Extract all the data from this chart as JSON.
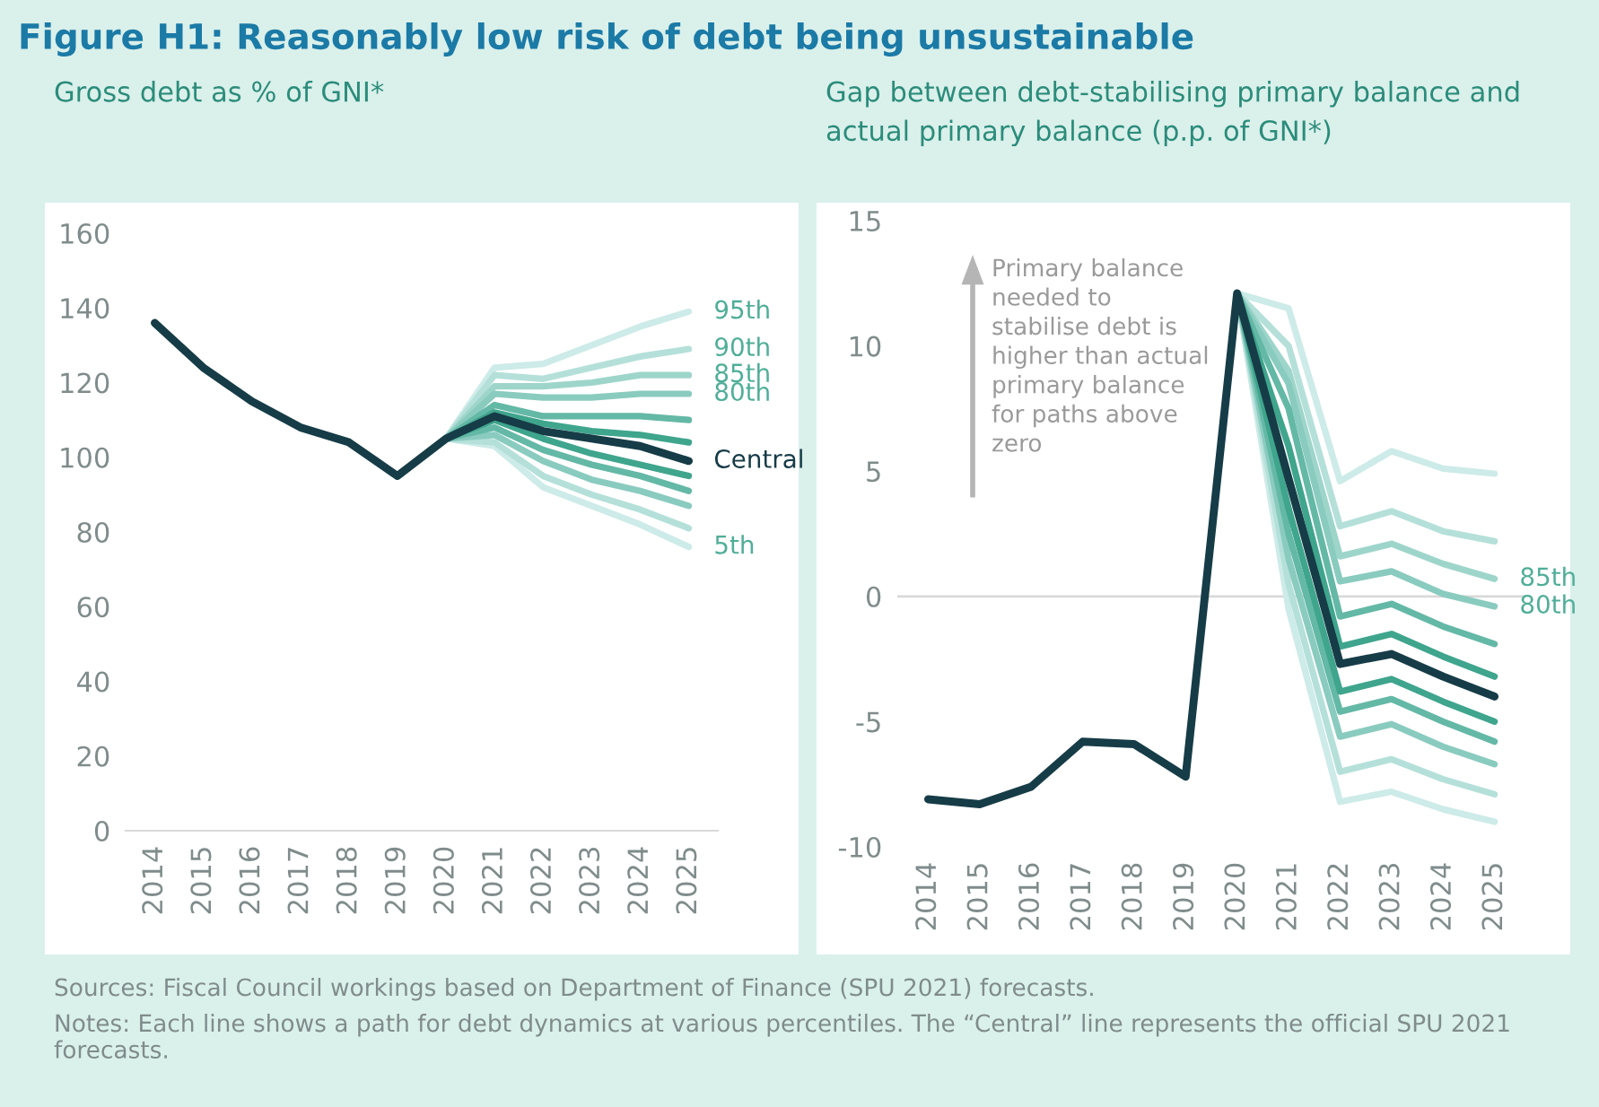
{
  "chart_data": [
    {
      "type": "line",
      "title": "Figure H1: Reasonably low risk of debt being unsustainable",
      "subtitle": "Gross debt as % of GNI*",
      "categories": [
        "2014",
        "2015",
        "2016",
        "2017",
        "2018",
        "2019",
        "2020",
        "2021",
        "2022",
        "2023",
        "2024",
        "2025"
      ],
      "ylim": [
        0,
        160
      ],
      "yticks": [
        0,
        20,
        40,
        60,
        80,
        100,
        120,
        140,
        160
      ],
      "grid": false,
      "legend": false,
      "marker": "none",
      "line_style": "solid",
      "series": [
        {
          "name": "95th",
          "color": "#cdebe8",
          "values": [
            null,
            null,
            null,
            null,
            null,
            null,
            105,
            124,
            125,
            130,
            135,
            139
          ]
        },
        {
          "name": "5th",
          "color": "#cdebe8",
          "values": [
            null,
            null,
            null,
            null,
            null,
            null,
            105,
            103,
            92,
            87,
            82,
            76
          ]
        },
        {
          "name": "90th",
          "color": "#b5e0da",
          "values": [
            null,
            null,
            null,
            null,
            null,
            null,
            105,
            122,
            121,
            124,
            127,
            129
          ]
        },
        {
          "color": "#b5e0da",
          "values": [
            null,
            null,
            null,
            null,
            null,
            null,
            105,
            104,
            95,
            90,
            86,
            81
          ]
        },
        {
          "name": "85th",
          "color": "#9ed5cb",
          "values": [
            null,
            null,
            null,
            null,
            null,
            null,
            105,
            119,
            119,
            120,
            122,
            122
          ]
        },
        {
          "name": "80th",
          "color": "#8acbbf",
          "values": [
            null,
            null,
            null,
            null,
            null,
            null,
            105,
            117,
            116,
            116,
            117,
            117
          ]
        },
        {
          "color": "#8acbbf",
          "values": [
            null,
            null,
            null,
            null,
            null,
            null,
            105,
            106,
            99,
            94,
            91,
            87
          ]
        },
        {
          "color": "#64b8a6",
          "values": [
            null,
            null,
            null,
            null,
            null,
            null,
            105,
            114,
            111,
            111,
            111,
            110
          ]
        },
        {
          "color": "#64b8a6",
          "values": [
            null,
            null,
            null,
            null,
            null,
            null,
            105,
            108,
            102,
            98,
            95,
            91
          ]
        },
        {
          "color": "#3fa58d",
          "values": [
            null,
            null,
            null,
            null,
            null,
            null,
            105,
            112,
            109,
            107,
            106,
            104
          ]
        },
        {
          "color": "#3fa58d",
          "values": [
            null,
            null,
            null,
            null,
            null,
            null,
            105,
            110,
            105,
            101,
            98,
            95
          ]
        },
        {
          "name": "Central",
          "color": "#163c47",
          "values": [
            136,
            124,
            115,
            108,
            104,
            95,
            105,
            111,
            107,
            105,
            103,
            99
          ]
        }
      ],
      "annotations": [
        "Sources: Fiscal Council workings based on Department of Finance (SPU 2021) forecasts.",
        "Notes: Each line shows a path for debt dynamics at various percentiles. The “Central” line represents the official SPU 2021 forecasts."
      ]
    },
    {
      "type": "line",
      "subtitle": "Gap between debt-stabilising primary balance and actual primary balance (p.p. of GNI*)",
      "categories": [
        "2014",
        "2015",
        "2016",
        "2017",
        "2018",
        "2019",
        "2020",
        "2021",
        "2022",
        "2023",
        "2024",
        "2025"
      ],
      "ylim": [
        -10,
        15
      ],
      "yticks": [
        -10,
        -5,
        0,
        5,
        10,
        15
      ],
      "grid": false,
      "legend": false,
      "marker": "none",
      "line_style": "solid",
      "ref_lines": [
        {
          "axis": "y",
          "value": 0,
          "color": "#d9d9d9"
        }
      ],
      "series": [
        {
          "color": "#cdebe8",
          "values": [
            null,
            null,
            null,
            null,
            null,
            null,
            12.1,
            11.5,
            4.6,
            5.8,
            5.1,
            4.9
          ]
        },
        {
          "color": "#cdebe8",
          "values": [
            null,
            null,
            null,
            null,
            null,
            null,
            12.1,
            -0.5,
            -8.2,
            -7.8,
            -8.5,
            -9.0
          ]
        },
        {
          "color": "#b5e0da",
          "values": [
            null,
            null,
            null,
            null,
            null,
            null,
            12.1,
            10.0,
            2.8,
            3.4,
            2.6,
            2.2
          ]
        },
        {
          "color": "#b5e0da",
          "values": [
            null,
            null,
            null,
            null,
            null,
            null,
            12.1,
            0.5,
            -7.0,
            -6.5,
            -7.3,
            -7.9
          ]
        },
        {
          "name": "85th",
          "color": "#9ed5cb",
          "values": [
            null,
            null,
            null,
            null,
            null,
            null,
            12.1,
            9.0,
            1.6,
            2.1,
            1.3,
            0.7
          ]
        },
        {
          "name": "80th",
          "color": "#8acbbf",
          "values": [
            null,
            null,
            null,
            null,
            null,
            null,
            12.1,
            8.5,
            0.6,
            1.0,
            0.1,
            -0.4
          ]
        },
        {
          "color": "#8acbbf",
          "values": [
            null,
            null,
            null,
            null,
            null,
            null,
            12.1,
            1.5,
            -5.6,
            -5.1,
            -6.0,
            -6.7
          ]
        },
        {
          "color": "#64b8a6",
          "values": [
            null,
            null,
            null,
            null,
            null,
            null,
            12.1,
            7.5,
            -0.8,
            -0.3,
            -1.2,
            -1.9
          ]
        },
        {
          "color": "#64b8a6",
          "values": [
            null,
            null,
            null,
            null,
            null,
            null,
            12.1,
            2.5,
            -4.6,
            -4.1,
            -5.0,
            -5.8
          ]
        },
        {
          "color": "#3fa58d",
          "values": [
            null,
            null,
            null,
            null,
            null,
            null,
            12.1,
            6.0,
            -2.0,
            -1.5,
            -2.4,
            -3.2
          ]
        },
        {
          "color": "#3fa58d",
          "values": [
            null,
            null,
            null,
            null,
            null,
            null,
            12.1,
            3.5,
            -3.8,
            -3.3,
            -4.2,
            -5.0
          ]
        },
        {
          "color": "#163c47",
          "values": [
            -8.1,
            -8.3,
            -7.6,
            -5.8,
            -5.9,
            -7.2,
            12.1,
            4.7,
            -2.7,
            -2.3,
            -3.2,
            -4.0
          ]
        }
      ],
      "annotations": [
        "Primary balance\nneeded to\nstabilise debt is\nhigher than actual\nprimary balance\nfor paths above\nzero"
      ]
    }
  ]
}
